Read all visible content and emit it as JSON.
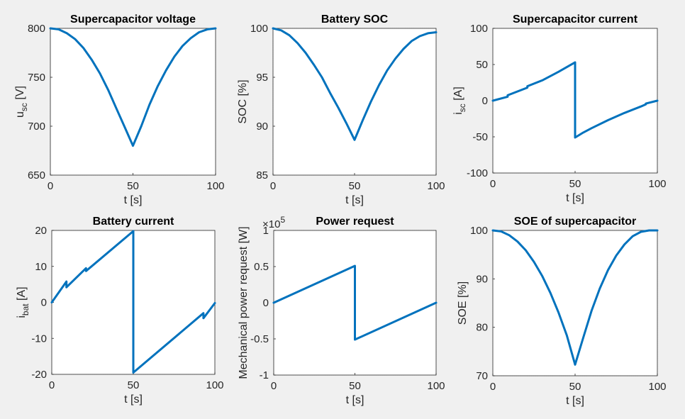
{
  "colors": {
    "background": "#f0f0f0",
    "axes_bg": "#ffffff",
    "line": "#0072bd"
  },
  "chart_data": [
    {
      "id": "usc",
      "type": "line",
      "title": "Supercapacitor voltage",
      "xlabel": "t [s]",
      "ylabel": {
        "main": "u",
        "sub": "sc",
        "unit": " [V]"
      },
      "xlim": [
        0,
        100
      ],
      "ylim": [
        650,
        800
      ],
      "xticks": [
        0,
        50,
        100
      ],
      "xtick_labels": [
        "0",
        "50",
        "100"
      ],
      "yticks": [
        650,
        700,
        750,
        800
      ],
      "ytick_labels": [
        "650",
        "700",
        "750",
        "800"
      ],
      "grid": true,
      "series": [
        {
          "x": [
            0,
            5,
            10,
            15,
            20,
            25,
            30,
            35,
            40,
            45,
            50,
            55,
            60,
            65,
            70,
            75,
            80,
            85,
            90,
            95,
            100
          ],
          "y": [
            800,
            799,
            795,
            789,
            780,
            768,
            754,
            737,
            718,
            699,
            680,
            700,
            722,
            741,
            757,
            771,
            782,
            790,
            796,
            799,
            800
          ]
        }
      ]
    },
    {
      "id": "soc",
      "type": "line",
      "title": "Battery SOC",
      "xlabel": "t [s]",
      "ylabel": {
        "main": "SOC [%]"
      },
      "xlim": [
        0,
        100
      ],
      "ylim": [
        85,
        100
      ],
      "xticks": [
        0,
        50,
        100
      ],
      "xtick_labels": [
        "0",
        "50",
        "100"
      ],
      "yticks": [
        85,
        90,
        95,
        100
      ],
      "ytick_labels": [
        "85",
        "90",
        "95",
        "100"
      ],
      "grid": true,
      "series": [
        {
          "x": [
            0,
            5,
            10,
            15,
            20,
            25,
            30,
            35,
            40,
            45,
            50,
            55,
            60,
            65,
            70,
            75,
            80,
            85,
            90,
            95,
            100
          ],
          "y": [
            100,
            99.8,
            99.3,
            98.5,
            97.5,
            96.3,
            95.0,
            93.4,
            91.9,
            90.3,
            88.6,
            90.6,
            92.5,
            94.2,
            95.7,
            96.9,
            97.9,
            98.7,
            99.2,
            99.5,
            99.6
          ]
        }
      ]
    },
    {
      "id": "isc",
      "type": "line",
      "title": "Supercapacitor current",
      "xlabel": "t [s]",
      "ylabel": {
        "main": "i",
        "sub": "sc",
        "unit": " [A]"
      },
      "xlim": [
        0,
        100
      ],
      "ylim": [
        -100,
        100
      ],
      "xticks": [
        0,
        50,
        100
      ],
      "xtick_labels": [
        "0",
        "50",
        "100"
      ],
      "yticks": [
        -100,
        -50,
        0,
        50,
        100
      ],
      "ytick_labels": [
        "-100",
        "-50",
        "0",
        "50",
        "100"
      ],
      "grid": true,
      "series": [
        {
          "x": [
            0,
            9,
            9,
            21,
            21,
            30,
            40,
            50,
            50,
            55,
            60,
            70,
            80,
            90,
            93,
            93,
            100
          ],
          "y": [
            0,
            5.5,
            7.5,
            18,
            20,
            28,
            40,
            53,
            -51,
            -44,
            -38,
            -27,
            -17,
            -8,
            -5,
            -4,
            0
          ]
        }
      ]
    },
    {
      "id": "ibat",
      "type": "line",
      "title": "Battery current",
      "xlabel": "t [s]",
      "ylabel": {
        "main": "i",
        "sub": "bat",
        "unit": " [A]"
      },
      "xlim": [
        0,
        100
      ],
      "ylim": [
        -20,
        20
      ],
      "xticks": [
        0,
        50,
        100
      ],
      "xtick_labels": [
        "0",
        "50",
        "100"
      ],
      "yticks": [
        -20,
        -10,
        0,
        10,
        20
      ],
      "ytick_labels": [
        "-20",
        "-10",
        "0",
        "10",
        "20"
      ],
      "grid": true,
      "series": [
        {
          "x": [
            0,
            9,
            9,
            21,
            21,
            50,
            50,
            93,
            93,
            100
          ],
          "y": [
            0,
            5.8,
            4.2,
            9.5,
            8.7,
            19.8,
            -19.5,
            -3,
            -4.4,
            -0.2
          ]
        }
      ]
    },
    {
      "id": "power",
      "type": "line",
      "title": "Power request",
      "xlabel": "t [s]",
      "ylabel": {
        "main": "Mechanical power request [W]"
      },
      "multiplier": {
        "base": "×10",
        "exp": "5"
      },
      "xlim": [
        0,
        100
      ],
      "ylim": [
        -1,
        1
      ],
      "xticks": [
        0,
        50,
        100
      ],
      "xtick_labels": [
        "0",
        "50",
        "100"
      ],
      "yticks": [
        -1,
        -0.5,
        0,
        0.5,
        1
      ],
      "ytick_labels": [
        "-1",
        "-0.5",
        "0",
        "0.5",
        "1"
      ],
      "grid": true,
      "series": [
        {
          "x": [
            0,
            50,
            50,
            100
          ],
          "y": [
            0,
            0.51,
            -0.51,
            0
          ]
        }
      ]
    },
    {
      "id": "soe",
      "type": "line",
      "title": "SOE of supercapacitor",
      "xlabel": "t [s]",
      "ylabel": {
        "main": "SOE [%]"
      },
      "xlim": [
        0,
        100
      ],
      "ylim": [
        70,
        100
      ],
      "xticks": [
        0,
        50,
        100
      ],
      "xtick_labels": [
        "0",
        "50",
        "100"
      ],
      "yticks": [
        70,
        80,
        90,
        100
      ],
      "ytick_labels": [
        "70",
        "80",
        "90",
        "100"
      ],
      "grid": true,
      "series": [
        {
          "x": [
            0,
            5,
            10,
            15,
            20,
            25,
            30,
            35,
            40,
            45,
            50,
            55,
            60,
            65,
            70,
            75,
            80,
            85,
            90,
            95,
            100
          ],
          "y": [
            100,
            99.8,
            99.0,
            97.7,
            95.9,
            93.5,
            90.6,
            87.1,
            83.0,
            78.3,
            72.3,
            77.9,
            83.4,
            88.0,
            91.8,
            94.8,
            97.1,
            98.8,
            99.7,
            100,
            100
          ]
        }
      ]
    }
  ]
}
